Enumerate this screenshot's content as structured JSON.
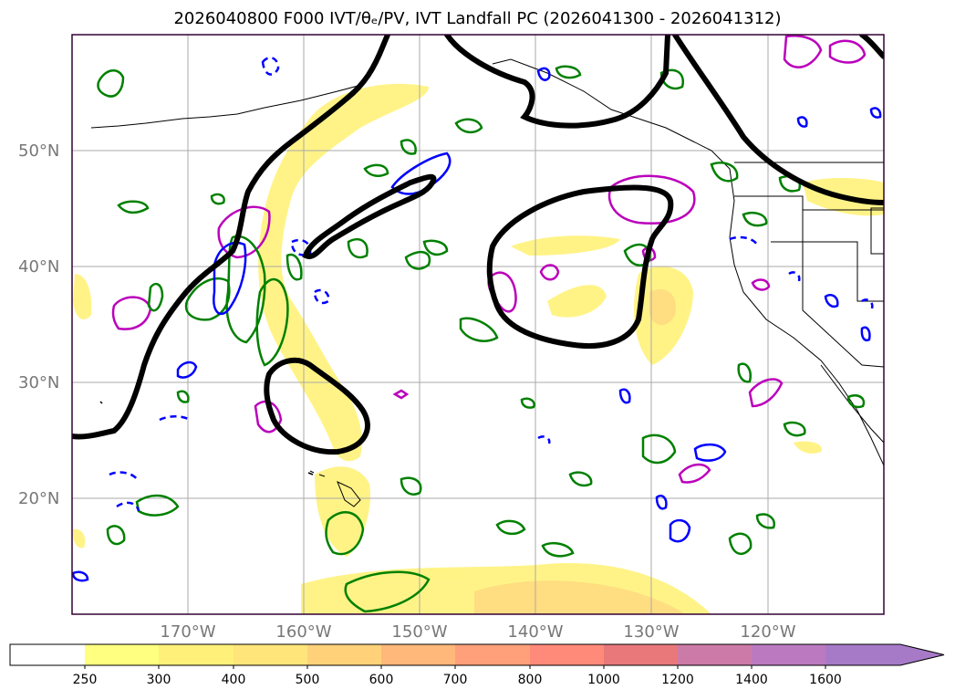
{
  "title": "2026040800 F000 IVT/θₑ/PV, IVT Landfall PC (2026041300 - 2026041312)",
  "map": {
    "lat_labels": [
      "50°N",
      "40°N",
      "30°N",
      "20°N"
    ],
    "lon_labels": [
      "170°W",
      "160°W",
      "150°W",
      "140°W",
      "130°W",
      "120°W"
    ],
    "lat_values": [
      50,
      40,
      30,
      20
    ],
    "lon_values": [
      -170,
      -160,
      -150,
      -140,
      -130,
      -120
    ],
    "extent": {
      "lon_min": -180,
      "lon_max": -110,
      "lat_min": 10,
      "lat_max": 60
    }
  },
  "colorbar": {
    "labels": [
      "250",
      "300",
      "400",
      "500",
      "600",
      "700",
      "800",
      "1000",
      "1200",
      "1400",
      "1600"
    ],
    "colors": [
      "#ffffff",
      "#ffff80",
      "#fff07a",
      "#ffe57a",
      "#ffd27a",
      "#ffb87a",
      "#ffa07a",
      "#ff8a7a",
      "#e8787a",
      "#cc7aa8",
      "#bb7ac0",
      "#a77ac8"
    ],
    "extend": "max"
  },
  "styles": {
    "black_contour": "#000000",
    "positive_pv": "#008000",
    "negative_pv": "#0000ff",
    "magenta": "#bb00bb",
    "ivt_fill": "#fff27a",
    "ivt_fill_dark": "#ffd880",
    "grid": "#aaaaaa"
  }
}
